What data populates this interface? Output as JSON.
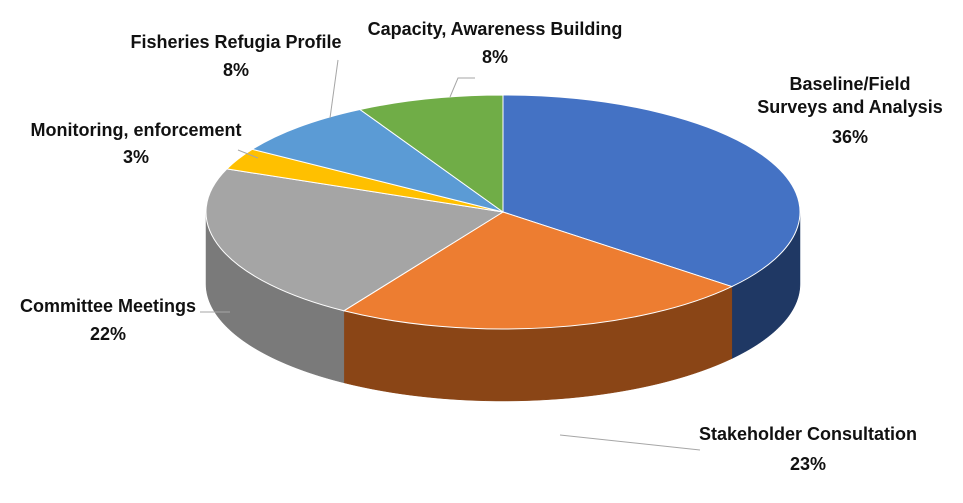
{
  "chart_data": {
    "type": "pie",
    "style": "3d",
    "slices": [
      {
        "label": "Baseline/Field Surveys and Analysis",
        "value": 36,
        "value_label": "36%",
        "color": "#4472C4",
        "side_color": "#1F3864"
      },
      {
        "label": "Stakeholder Consultation",
        "value": 23,
        "value_label": "23%",
        "color": "#ED7D31",
        "side_color": "#8A4516"
      },
      {
        "label": "Committee Meetings",
        "value": 22,
        "value_label": "22%",
        "color": "#A5A5A5",
        "side_color": "#7A7A7A"
      },
      {
        "label": "Monitoring, enforcement",
        "value": 3,
        "value_label": "3%",
        "color": "#FFC000",
        "side_color": "#B08400"
      },
      {
        "label": "Fisheries Refugia Profile",
        "value": 8,
        "value_label": "8%",
        "color": "#5B9BD5",
        "side_color": "#3A6E9E"
      },
      {
        "label": "Capacity, Awareness Building",
        "value": 8,
        "value_label": "8%",
        "color": "#70AD47",
        "side_color": "#4A7A2E"
      }
    ],
    "legend": "none",
    "data_labels": "outside with leader lines"
  }
}
